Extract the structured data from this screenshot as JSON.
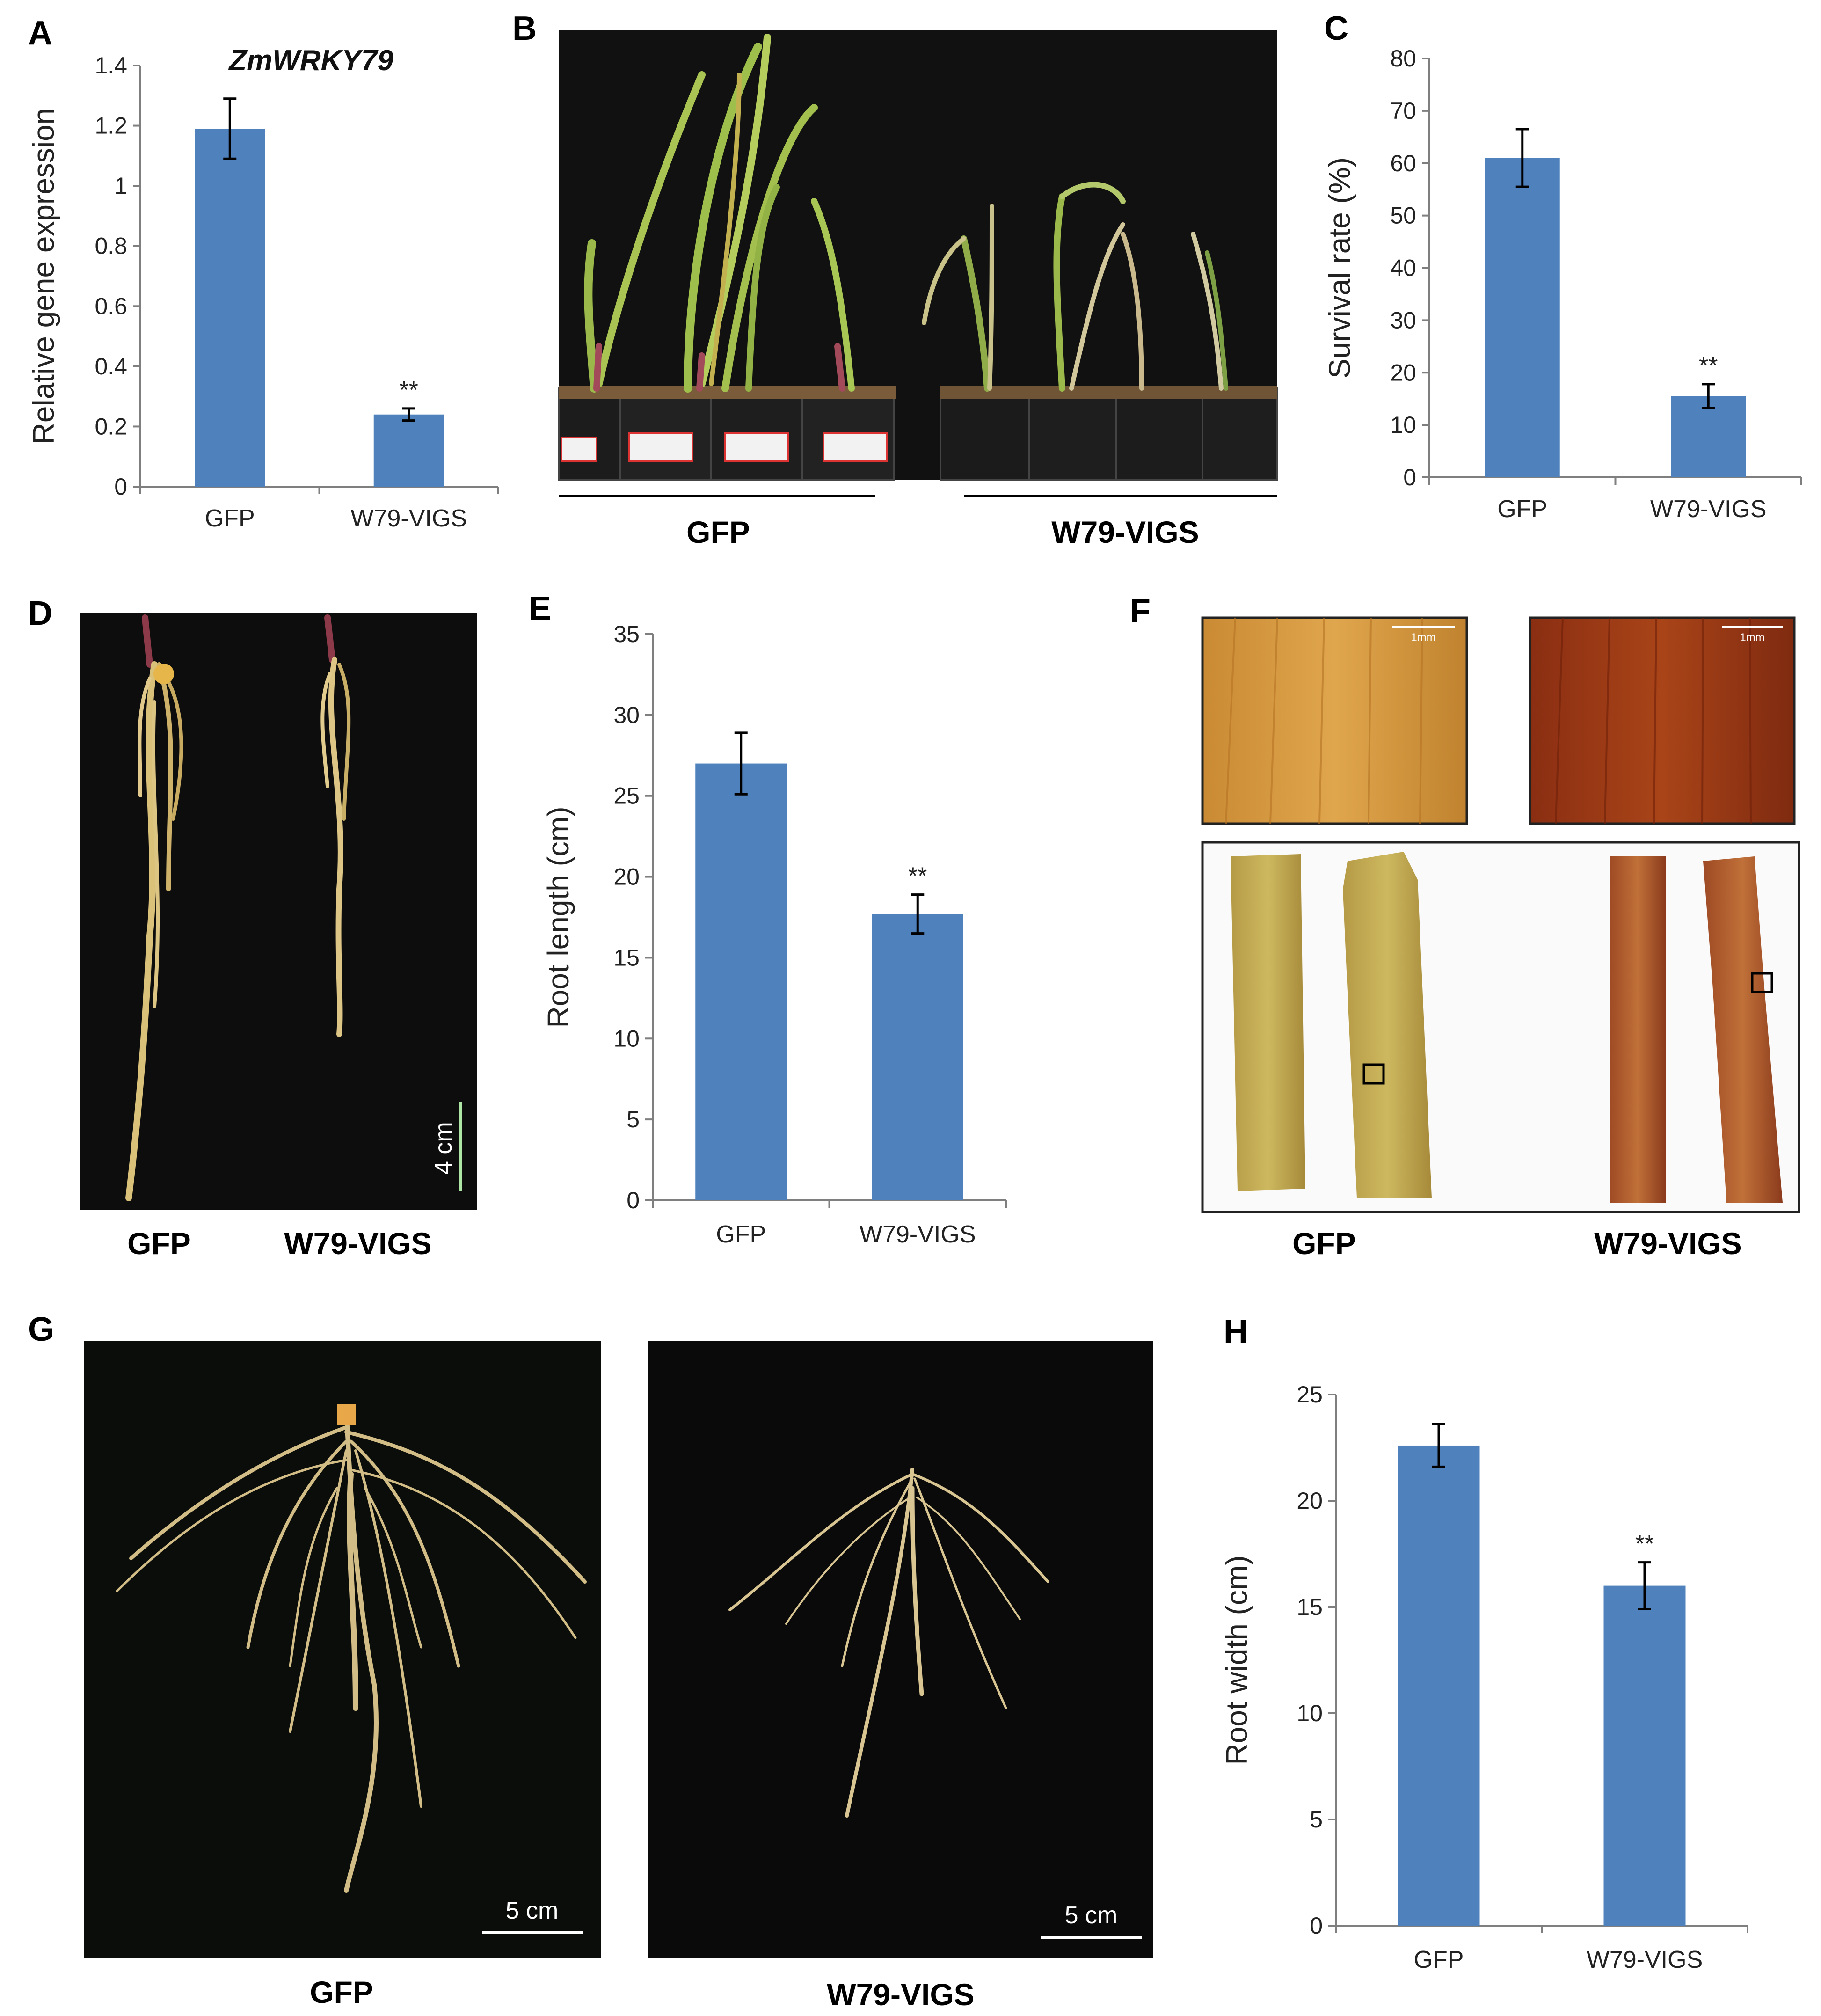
{
  "panels": {
    "A": {
      "letter": "A"
    },
    "B": {
      "letter": "B",
      "labels": [
        "GFP",
        "W79-VIGS"
      ]
    },
    "C": {
      "letter": "C"
    },
    "D": {
      "letter": "D",
      "labels": [
        "GFP",
        "W79-VIGS"
      ],
      "scale_bar": "4 cm"
    },
    "E": {
      "letter": "E"
    },
    "F": {
      "letter": "F",
      "labels": [
        "GFP",
        "W79-VIGS"
      ],
      "scale_bar": "1mm"
    },
    "G": {
      "letter": "G",
      "labels": [
        "GFP",
        "W79-VIGS"
      ],
      "scale_bar": "5 cm"
    },
    "H": {
      "letter": "H"
    }
  },
  "colors": {
    "bar": "#4f81bd",
    "axis": "#7f7f7f"
  },
  "chart_data": [
    {
      "id": "A",
      "type": "bar",
      "title": "ZmWRKY79",
      "ylabel": "Relative gene expression",
      "categories": [
        "GFP",
        "W79-VIGS"
      ],
      "values": [
        1.19,
        0.24
      ],
      "errors": [
        0.1,
        0.02
      ],
      "significance": [
        "",
        "**"
      ],
      "ylim": [
        0,
        1.4
      ],
      "yticks": [
        0,
        0.2,
        0.4,
        0.6,
        0.8,
        1,
        1.2,
        1.4
      ],
      "ytick_labels": [
        "0",
        "0.2",
        "0.4",
        "0.6",
        "0.8",
        "1",
        "1.2",
        "1.4"
      ]
    },
    {
      "id": "C",
      "type": "bar",
      "title": "",
      "ylabel": "Survival rate (%)",
      "categories": [
        "GFP",
        "W79-VIGS"
      ],
      "values": [
        61,
        15.5
      ],
      "errors": [
        5.5,
        2.3
      ],
      "significance": [
        "",
        "**"
      ],
      "ylim": [
        0,
        80
      ],
      "yticks": [
        0,
        10,
        20,
        30,
        40,
        50,
        60,
        70,
        80
      ],
      "ytick_labels": [
        "0",
        "10",
        "20",
        "30",
        "40",
        "50",
        "60",
        "70",
        "80"
      ]
    },
    {
      "id": "E",
      "type": "bar",
      "title": "",
      "ylabel": "Root length (cm)",
      "categories": [
        "GFP",
        "W79-VIGS"
      ],
      "values": [
        27,
        17.7
      ],
      "errors": [
        1.9,
        1.2
      ],
      "significance": [
        "",
        "**"
      ],
      "ylim": [
        0,
        35
      ],
      "yticks": [
        0,
        5,
        10,
        15,
        20,
        25,
        30,
        35
      ],
      "ytick_labels": [
        "0",
        "5",
        "10",
        "15",
        "20",
        "25",
        "30",
        "35"
      ]
    },
    {
      "id": "H",
      "type": "bar",
      "title": "",
      "ylabel": "Root width (cm)",
      "categories": [
        "GFP",
        "W79-VIGS"
      ],
      "values": [
        22.6,
        16
      ],
      "errors": [
        1.0,
        1.1
      ],
      "significance": [
        "",
        "**"
      ],
      "ylim": [
        0,
        25
      ],
      "yticks": [
        0,
        5,
        10,
        15,
        20,
        25
      ],
      "ytick_labels": [
        "0",
        "5",
        "10",
        "15",
        "20",
        "25"
      ]
    }
  ]
}
